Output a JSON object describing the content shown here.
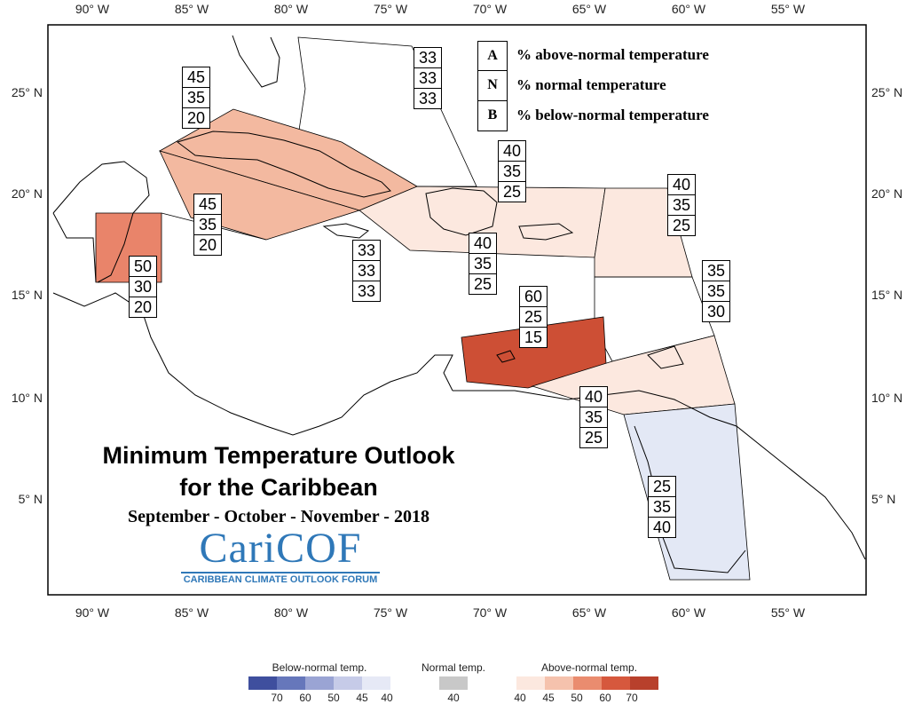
{
  "axes": {
    "lon_labels": [
      "90° W",
      "85° W",
      "80° W",
      "75° W",
      "70° W",
      "65° W",
      "60° W",
      "55° W"
    ],
    "lat_labels": [
      "25° N",
      "20° N",
      "15° N",
      "10° N",
      "5° N"
    ]
  },
  "legend": {
    "items": [
      {
        "key": "A",
        "text": "% above-normal temperature"
      },
      {
        "key": "N",
        "text": "% normal temperature"
      },
      {
        "key": "B",
        "text": "% below-normal temperature"
      }
    ]
  },
  "regions": [
    {
      "name": "cuba-cayman",
      "a": "45",
      "n": "35",
      "b": "20",
      "fill": "#f3b9a0"
    },
    {
      "name": "jamaica-region",
      "a": "45",
      "n": "35",
      "b": "20",
      "fill": "#f3b9a0"
    },
    {
      "name": "belize",
      "a": "50",
      "n": "30",
      "b": "20",
      "fill": "#e9846a"
    },
    {
      "name": "bahamas",
      "a": "33",
      "n": "33",
      "b": "33",
      "fill": "#ffffff"
    },
    {
      "name": "caribbean-sea",
      "a": "33",
      "n": "33",
      "b": "33",
      "fill": "#ffffff"
    },
    {
      "name": "hispaniola-pr",
      "a": "40",
      "n": "35",
      "b": "25",
      "fill": "#fce8df"
    },
    {
      "name": "hispaniola-south",
      "a": "40",
      "n": "35",
      "b": "25",
      "fill": "#fce8df"
    },
    {
      "name": "leeward-islands",
      "a": "40",
      "n": "35",
      "b": "25",
      "fill": "#fce8df"
    },
    {
      "name": "windward-islands",
      "a": "35",
      "n": "35",
      "b": "30",
      "fill": "#ffffff"
    },
    {
      "name": "abc-islands",
      "a": "60",
      "n": "25",
      "b": "15",
      "fill": "#cd4f35"
    },
    {
      "name": "trinidad-tobago",
      "a": "40",
      "n": "35",
      "b": "25",
      "fill": "#fce8df"
    },
    {
      "name": "guianas",
      "a": "25",
      "n": "35",
      "b": "40",
      "fill": "#e3e8f5"
    }
  ],
  "title": {
    "line1": "Minimum Temperature Outlook",
    "line2": "for the Caribbean",
    "line3": "September - October - November - 2018"
  },
  "logo": {
    "name": "CariCOF",
    "subtitle": "CARIBBEAN CLIMATE OUTLOOK FORUM"
  },
  "colorbar": {
    "below": {
      "title": "Below-normal temp.",
      "labels": [
        "70",
        "60",
        "50",
        "45",
        "40"
      ],
      "colors": [
        "#3f4f9e",
        "#6677bb",
        "#9aa4d4",
        "#c6cbe8",
        "#e6e9f6"
      ]
    },
    "normal": {
      "title": "Normal temp.",
      "labels": [
        "40"
      ],
      "colors": [
        "#c8c8c8"
      ]
    },
    "above": {
      "title": "Above-normal temp.",
      "labels": [
        "40",
        "45",
        "50",
        "60",
        "70"
      ],
      "colors": [
        "#fce8df",
        "#f5c2ad",
        "#ea8c6f",
        "#d6583d",
        "#b8402c"
      ]
    }
  }
}
